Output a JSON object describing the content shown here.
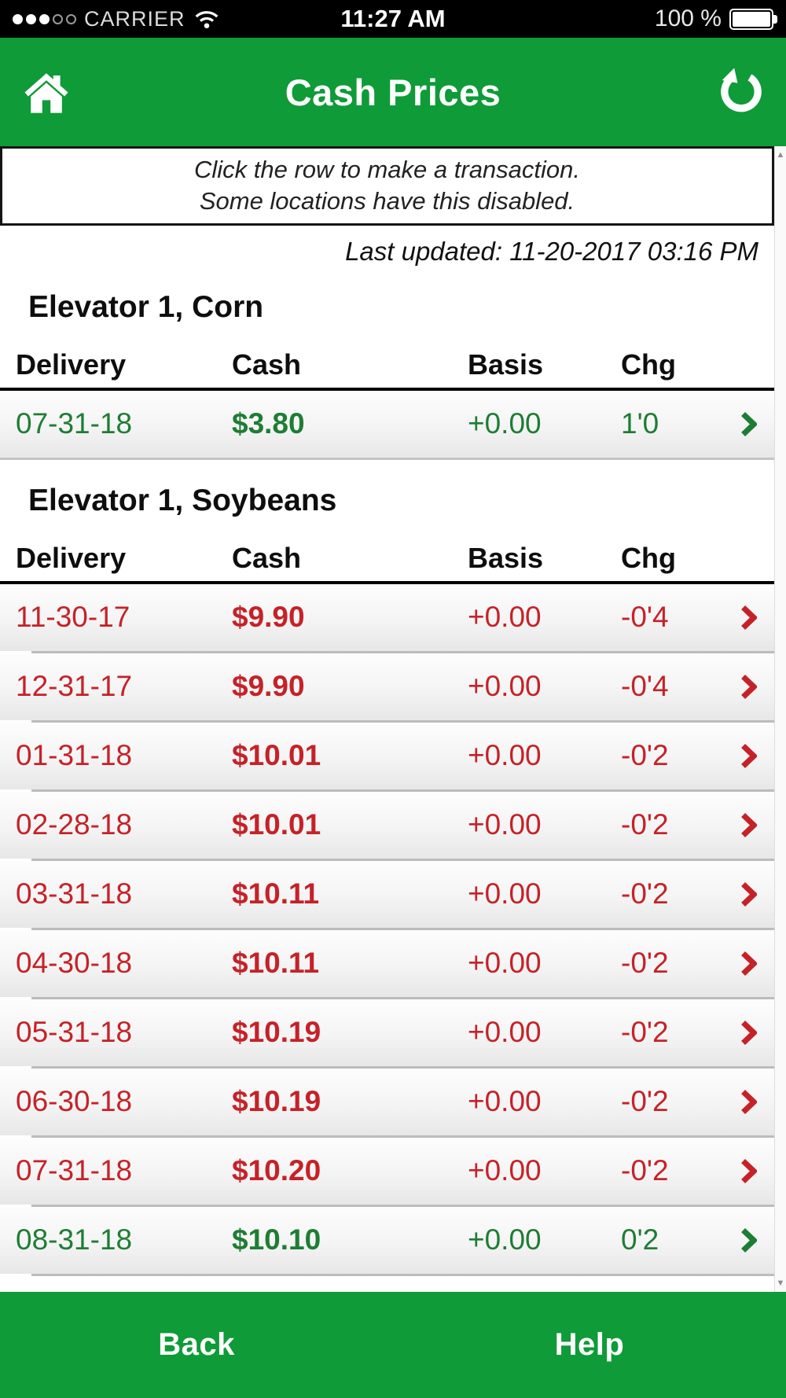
{
  "status_bar": {
    "carrier": "CARRIER",
    "time": "11:27 AM",
    "battery_percent": "100 %",
    "signal_filled": 3,
    "signal_total": 5
  },
  "header": {
    "title": "Cash Prices"
  },
  "notice": {
    "line1": "Click the row to make a transaction.",
    "line2": "Some locations have this disabled."
  },
  "last_updated": "Last updated: 11-20-2017 03:16 PM",
  "columns": {
    "delivery": "Delivery",
    "cash": "Cash",
    "basis": "Basis",
    "chg": "Chg"
  },
  "sections": [
    {
      "title": "Elevator 1, Corn",
      "rows": [
        {
          "delivery": "07-31-18",
          "cash": "$3.80",
          "basis": "+0.00",
          "chg": "1'0",
          "direction": "up"
        }
      ]
    },
    {
      "title": "Elevator 1, Soybeans",
      "rows": [
        {
          "delivery": "11-30-17",
          "cash": "$9.90",
          "basis": "+0.00",
          "chg": "-0'4",
          "direction": "down"
        },
        {
          "delivery": "12-31-17",
          "cash": "$9.90",
          "basis": "+0.00",
          "chg": "-0'4",
          "direction": "down"
        },
        {
          "delivery": "01-31-18",
          "cash": "$10.01",
          "basis": "+0.00",
          "chg": "-0'2",
          "direction": "down"
        },
        {
          "delivery": "02-28-18",
          "cash": "$10.01",
          "basis": "+0.00",
          "chg": "-0'2",
          "direction": "down"
        },
        {
          "delivery": "03-31-18",
          "cash": "$10.11",
          "basis": "+0.00",
          "chg": "-0'2",
          "direction": "down"
        },
        {
          "delivery": "04-30-18",
          "cash": "$10.11",
          "basis": "+0.00",
          "chg": "-0'2",
          "direction": "down"
        },
        {
          "delivery": "05-31-18",
          "cash": "$10.19",
          "basis": "+0.00",
          "chg": "-0'2",
          "direction": "down"
        },
        {
          "delivery": "06-30-18",
          "cash": "$10.19",
          "basis": "+0.00",
          "chg": "-0'2",
          "direction": "down"
        },
        {
          "delivery": "07-31-18",
          "cash": "$10.20",
          "basis": "+0.00",
          "chg": "-0'2",
          "direction": "down"
        },
        {
          "delivery": "08-31-18",
          "cash": "$10.10",
          "basis": "+0.00",
          "chg": "0'2",
          "direction": "up"
        }
      ]
    }
  ],
  "footer": {
    "back": "Back",
    "help": "Help"
  },
  "icons": {
    "home": "home-icon",
    "refresh": "refresh-icon",
    "wifi": "wifi-icon",
    "battery": "battery-icon",
    "chevron_right": "❯",
    "scroll_up": "▲",
    "scroll_down": "▼"
  },
  "colors": {
    "header_green": "#0f9b38",
    "up_green": "#1e7d34",
    "down_red": "#c52228",
    "status_bar_black": "#000000"
  }
}
